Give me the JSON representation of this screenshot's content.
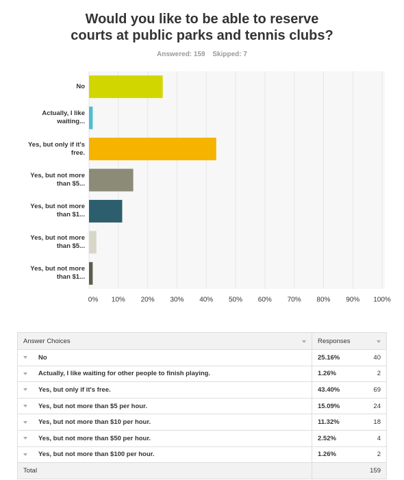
{
  "chart_data": {
    "type": "bar",
    "horizontal": true,
    "title": "Would you like to be able to reserve courts at public parks and tennis clubs?",
    "answered": "Answered: 159",
    "skipped": "Skipped: 7",
    "categories": [
      "No",
      "Actually, I like waiting...",
      "Yes, but only if it's free.",
      "Yes, but not more than $5...",
      "Yes, but not more than $1...",
      "Yes, but not more than $5...",
      "Yes, but not more than $1..."
    ],
    "values": [
      25.16,
      1.26,
      43.4,
      15.09,
      11.32,
      2.52,
      1.26
    ],
    "colors": [
      "#d2d600",
      "#4ebfcf",
      "#f6b300",
      "#8c8b77",
      "#2d5e6d",
      "#d8d7c7",
      "#5e5d4a"
    ],
    "xlim": [
      0,
      100
    ],
    "xticks": [
      {
        "value": 0,
        "label": "0%"
      },
      {
        "value": 10,
        "label": "10%"
      },
      {
        "value": 20,
        "label": "20%"
      },
      {
        "value": 30,
        "label": "30%"
      },
      {
        "value": 40,
        "label": "40%"
      },
      {
        "value": 50,
        "label": "50%"
      },
      {
        "value": 60,
        "label": "60%"
      },
      {
        "value": 70,
        "label": "70%"
      },
      {
        "value": 80,
        "label": "80%"
      },
      {
        "value": 90,
        "label": "90%"
      },
      {
        "value": 100,
        "label": "100%"
      }
    ],
    "grid": true
  },
  "table": {
    "header": [
      "Answer Choices",
      "Responses"
    ],
    "rows": [
      [
        "No",
        "25.16%",
        40
      ],
      [
        "Actually, I like waiting for other people to finish playing.",
        "1.26%",
        2
      ],
      [
        "Yes, but only if it's free.",
        "43.40%",
        69
      ],
      [
        "Yes, but not more than $5 per hour.",
        "15.09%",
        24
      ],
      [
        "Yes, but not more than $10 per hour.",
        "11.32%",
        18
      ],
      [
        "Yes, but not more than $50 per hour.",
        "2.52%",
        4
      ],
      [
        "Yes, but not more than $100 per hour.",
        "1.26%",
        2
      ]
    ],
    "total": [
      "Total",
      159
    ]
  }
}
